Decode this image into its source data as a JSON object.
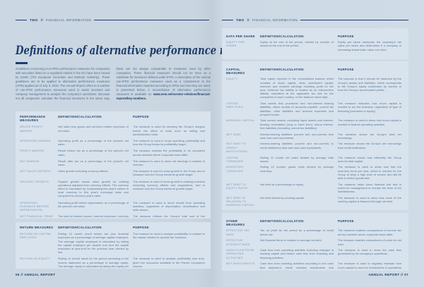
{
  "colors": {
    "navy_accent": "#1d3d6b",
    "page_background": "#ccd8e3",
    "panel_background": "#d9e3ed",
    "body_text": "#5a7896",
    "row_label_text": "#7b97b8"
  },
  "left_page": {
    "header": {
      "section": "TWO",
      "separator": "//",
      "label": "FINANCIAL INFORMATION"
    },
    "title": "Definitions of alternative performance measures",
    "intro": {
      "col_text": "Guidelines concerning non-IFRS performance measures for companies with securities listed on a regulated market in the EU have been issued by ESMA (The European Securities and Markets Authority). These guidelines are to be applied to alternative performance measures (APM) applied as of July 3, 2016. The Annual Report refers to a number of non-IFRS performance measures used to assist investors and company management to analyse the company's operations. Because not all companies calculate the financial measures in the same way, these are not always comparable to measures used by other companies. These financial measures should not be seen as a substitute for measures defined under IFRS. A description of the various non-IFRS performance measures used as a complement to the financial information reported according to IFRS and how they are used, is presented below. A reconciliation of alternative performance measures is available on ",
      "bold_url": "www.oem.se/investor-relations/financial-reports/key-numbers."
    },
    "sections": [
      {
        "title": "PERFORMANCE MEASURES",
        "col_definition": "DEFINITION/CALCULATION",
        "col_purpose": "PURPOSE",
        "rows": [
          {
            "label": "GROSS PROFIT MARGIN",
            "definition": "Net sales less goods and services related expenses of net sales.",
            "purpose": "The measure is used for showing the Group's margins before the effect of costs such as selling and administrative costs."
          },
          {
            "label": "OPERATING MARGIN",
            "definition": "Operating profit as a percentage of the period's net sales.",
            "purpose": "The measure is used to show operating profitability and how the Group keeps its profitability target."
          },
          {
            "label": "PROFIT MARGIN",
            "definition": "Result before tax as a percentage of the period's net sales.",
            "purpose": "The measure enables the profitability to be compared across markets where corporate taxes differ."
          },
          {
            "label": "NET MARGIN",
            "definition": "Result after tax as a percentage of the period's net sales.",
            "purpose": "The measure is used to show net earnings in relation to revenue."
          },
          {
            "label": "NET SALES GROWTH",
            "definition": "Sales growth excluding currency effects.",
            "purpose": "The measure is used to show growth in the Group and to measure how the Group meets its growth target."
          },
          {
            "label": "ORGANIC GROWTH",
            "definition": "Organic growth shows sales growth for existing operations adjusted from currency effects. The currency effect is calculated by recalculating this year's values in local currency to this year's exchange rates and compared to previous year's rates.",
            "purpose": "The measure is used to show growth in existing business excluding currency effects and acquisitions, and to measure how the Group meets its growth target."
          },
          {
            "label": "OPERATING EARNINGS BEFORE DEPRECIATION",
            "definition": "Operating profit before depreciation as a percentage of the period's net sales.",
            "purpose": "The measure is used to show results from operating activities, regardless of depreciation, amortisation and write-downs."
          },
          {
            "label": "NET FINANCIAL ITEMS",
            "definition": "The total of interest income, interest expenses, currency differences reported in borrowings and cash equivalents in foreign currencies, other financial income and other financial expenses.",
            "purpose": "The measure reflects the Group's total cost of the external financing."
          }
        ]
      },
      {
        "title": "RETURN MEASURES",
        "col_definition": "DEFINITION/CALCULATION",
        "col_purpose": "PURPOSE",
        "rows": [
          {
            "label": "RETURN ON CAPITAL EMPLOYED",
            "definition": "Rolling 12 month result before tax plus financial expenses as a percentage of average capital employed. The average capital employed is calculated by taking the capital employed per quarter end and the capital employed at year-end for the previous year divided by two.",
            "purpose": "The measure is used to analyse profitability in relation to the capital needed to operate the business."
          },
          {
            "label": "RETURN ON EQUITY",
            "definition": "Rolling 12 month result for the period according to the income statement as a percentage of average equity. The average equity is calculated by taking the equity per period end and the equity at year-end for the previous year divided by two.",
            "purpose": "The measure is used to analyse profitability over time, given the resources available to the Parent Company's owners."
          }
        ]
      }
    ],
    "footer": "06 // ANNUAL REPORT"
  },
  "right_page": {
    "header": {
      "section": "TWO",
      "separator": "//",
      "label": "FINANCIAL INFORMATION"
    },
    "sections": [
      {
        "title": "DATA PER SHARE",
        "col_definition": "DEFINITION/CALCULATION",
        "col_purpose": "PURPOSE",
        "rows": [
          {
            "label": "EQUITY PER SHARE",
            "definition": "Equity at the end of the period, divided by number of shares at the end of the period.",
            "purpose": "Equity per share measures the company's net value per share and determines if a company is increasing shareholder value over time."
          }
        ]
      },
      {
        "title": "CAPITAL MEASURES",
        "col_definition": "DEFINITION/CALCULATION",
        "col_purpose": "PURPOSE",
        "rows": [
          {
            "label": "EQUITY",
            "definition": "Total equity reported in the consolidated balance sheet consists of share capital, other contributed capital, reserves and retained earnings including profit for the year. Deferred tax liability is treated as an interest-free liability, calculated at the applicable tax rate for the companies in each country, on the balance sheet date.",
            "purpose": "The purpose is that it should be balanced by the Group's assets and liabilities, which corresponds to the Group's equity contributed by owners or from the Group's accumulated profits."
          },
          {
            "label": "CAPITAL EMPLOYED",
            "definition": "Total assets less provisions and non-interest bearing liabilities, which consist of accounts payable, current tax liabilities, other liabilities and accrued expenses and prepaid income.",
            "purpose": "The measure indicates how much capital is needed to run the business, regardless of type of financing (borrowed or equity)."
          },
          {
            "label": "WORKING CAPITAL",
            "definition": "Total current assets, excluding liquid assets and interest-bearing receivables (long or short term), minus interest-free liabilities (excluding current tax liabilities).",
            "purpose": "The measure is used to show how much capital is needed to finance operating activities."
          },
          {
            "label": "NET DEBT",
            "definition": "Interest-bearing liabilities (current and non-current) less cash and cash equivalents.",
            "purpose": "The measure shows the Group's total net borrowings."
          },
          {
            "label": "NET DEBT TO CREDIT INSTITUTIONS",
            "definition": "Interest-bearing liabilities (current and non-current) to credit institutions less cash and cash equivalents.",
            "purpose": "The measure shows the Group's net borrowings from credit institutions."
          },
          {
            "label": "CAPITAL TURNOVER",
            "definition": "Rolling 12 month net sales divided by average total assets.",
            "purpose": "The measure shows how efficiently the Group uses its total capital."
          },
          {
            "label": "INVENTORY TURNOVER",
            "definition": "Rolling 12 months goods costs divided by average inventory.",
            "purpose": "The measure is used to show how fast the inventory turns per year, which is needed for the Group to keep a high level of service and still be able to deliver goods fast."
          },
          {
            "label": "NET DEBT TO EQUITY RATIO",
            "definition": "Net debt as a percentage of equity.",
            "purpose": "The measure helps show financial risk and is useful for management to monitor the level of the indebtedness."
          },
          {
            "label": "NET DEBT IN RELATION TO WORKING CAPITAL",
            "definition": "Net debt divided by working capital.",
            "purpose": "The measure is used to show how much of the working capital is financed through net debt."
          },
          {
            "label": "INTEREST COVERAGE RATIO",
            "definition": "Result before tax plus financial costs divided by financial costs.",
            "purpose": "The measure is used to calculate the Group's ability to pay financial costs."
          },
          {
            "label": "EQUITY RATIO",
            "definition": "Total equity as a percentage of total assets.",
            "purpose": "The measure shows how much of the Group's assets are financed by the shareholders through equity. An equity ratio is a measure of financial strength and how the Group meets its solidity target."
          }
        ]
      },
      {
        "title": "OTHER MEASURES",
        "col_definition": "DEFINITION/CALCULATION",
        "col_purpose": "PURPOSE",
        "rows": [
          {
            "label": "EFFECTIVE TAX RATE",
            "definition": "Tax on profit for the period as a percentage of result before tax.",
            "purpose": "The measure enables comparisons of income tax across markets where corporate taxes differ."
          },
          {
            "label": "EFFECTIVE INTEREST RATE",
            "definition": "Net financial items in relation to average net debt.",
            "purpose": "The measure enables comparisons of costs for net debt."
          },
          {
            "label": "CASH FLOW FROM OPERATING ACTIVITIES",
            "definition": "Cash flow from operating activities including changes in working capital and before cash flow from investing and financing activities.",
            "purpose": "The measure is used to show the cash flow generated by the company's operations."
          },
          {
            "label": "NET INVESTMENTS",
            "definition": "Cash flow from investing activities according to the cash flow statement, which includes investments and divestments of buildings, acquisitions, investments in machinery, IT and intangible assets and rebuilding activities.",
            "purpose": "The measure is used to regularly estimate how much capital is used for investments in operations and for expansion."
          }
        ]
      }
    ],
    "footer": "ANNUAL REPORT // 07"
  }
}
